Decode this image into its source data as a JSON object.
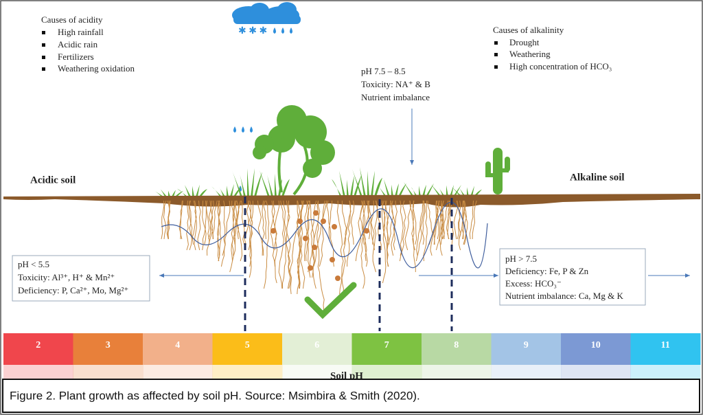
{
  "acidity": {
    "title": "Causes of acidity",
    "items": [
      "High rainfall",
      "Acidic rain",
      "Fertilizers",
      "Weathering oxidation"
    ]
  },
  "alkalinity": {
    "title": "Causes of alkalinity",
    "items": [
      "Drought",
      "Weathering",
      "High concentration of HCO₃"
    ]
  },
  "optimum_note": [
    "pH 7.5 – 8.5",
    "Toxicity: NA⁺ & B",
    "Nutrient imbalance"
  ],
  "soil_labels": {
    "acidic": "Acidic soil",
    "alkaline": "Alkaline soil"
  },
  "acidic_box": [
    "pH < 5.5",
    "Toxicity: Al³⁺, H⁺ & Mn²⁺",
    "Deficiency: P, Ca²⁺, Mo, Mg²⁺"
  ],
  "alkaline_box": [
    "pH > 7.5",
    "Deficiency: Fe, P & Zn",
    "Excess: HCO₃⁻",
    "Nutrient imbalance: Ca, Mg & K"
  ],
  "ph_scale": {
    "label": "Soil pH",
    "steps": [
      {
        "label": "2",
        "color": "#f0464c"
      },
      {
        "label": "3",
        "color": "#e8803a"
      },
      {
        "label": "4",
        "color": "#f2b08a"
      },
      {
        "label": "5",
        "color": "#fbbd19"
      },
      {
        "label": "6",
        "color": "#e3efd6"
      },
      {
        "label": "7",
        "color": "#7ec242"
      },
      {
        "label": "8",
        "color": "#b8d9a4"
      },
      {
        "label": "9",
        "color": "#a3c4e6"
      },
      {
        "label": "10",
        "color": "#7c99d4"
      },
      {
        "label": "11",
        "color": "#30c3f0"
      }
    ]
  },
  "caption": "Figure 2. Plant growth as affected by soil pH. Source: Msimbira & Smith (2020)."
}
